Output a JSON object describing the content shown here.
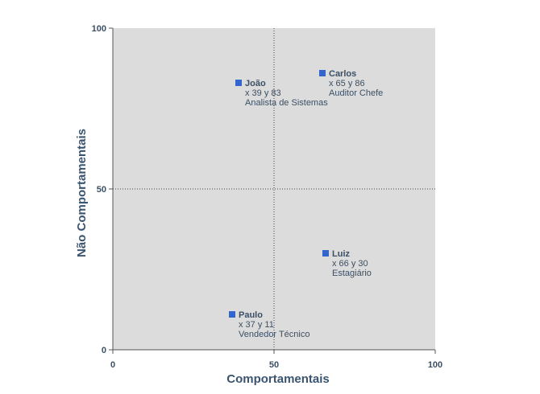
{
  "chart_data": {
    "type": "scatter",
    "title": "",
    "xlabel": "Comportamentais",
    "ylabel": "Não Comportamentais",
    "xlim": [
      0,
      100
    ],
    "ylim": [
      0,
      100
    ],
    "x_ticks": [
      "0",
      "50",
      "100"
    ],
    "y_ticks": [
      "0",
      "50",
      "100"
    ],
    "grid": "dotted lines at 50 (quadrant dividers)",
    "legend": "none",
    "colors": {
      "plot_bg": "#dcdcdc",
      "marker": "#3366cc",
      "text": "#3a4f66",
      "axis": "#555555"
    },
    "points": [
      {
        "name": "João",
        "x": 39,
        "y": 83,
        "coords": "x 39  y 83",
        "role": "Analista de Sistemas"
      },
      {
        "name": "Carlos",
        "x": 65,
        "y": 86,
        "coords": "x 65  y 86",
        "role": "Auditor Chefe"
      },
      {
        "name": "Luiz",
        "x": 66,
        "y": 30,
        "coords": "x 66  y 30",
        "role": "Estagiário"
      },
      {
        "name": "Paulo",
        "x": 37,
        "y": 11,
        "coords": "x 37  y 11",
        "role": "Vendedor Técnico"
      }
    ]
  }
}
